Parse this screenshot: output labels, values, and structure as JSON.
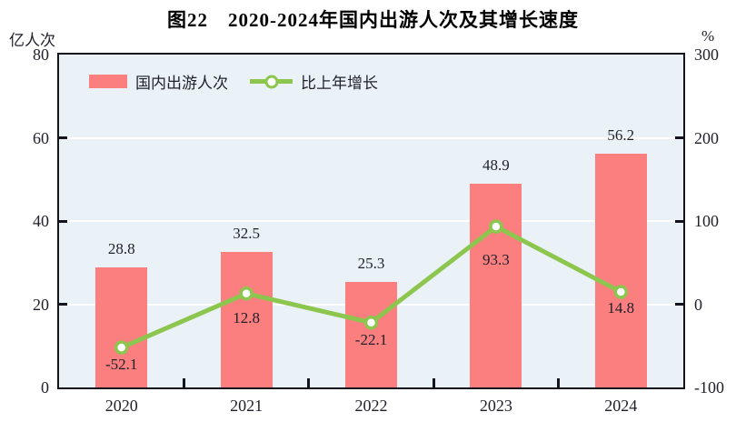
{
  "chart_data": {
    "type": "bar+line",
    "title": "图22　2020-2024年国内出游人次及其增长速度",
    "categories": [
      "2020",
      "2021",
      "2022",
      "2023",
      "2024"
    ],
    "series": [
      {
        "name": "国内出游人次",
        "type": "bar",
        "axis": "left",
        "values": [
          28.8,
          32.5,
          25.3,
          48.9,
          56.2
        ],
        "color": "#fb7f7f"
      },
      {
        "name": "比上年增长",
        "type": "line",
        "axis": "right",
        "values": [
          -52.1,
          12.8,
          -22.1,
          93.3,
          14.8
        ],
        "color": "#8cc64e",
        "marker": "open-circle"
      }
    ],
    "left_axis": {
      "label": "亿人次",
      "min": 0,
      "max": 80,
      "ticks": [
        0,
        20,
        40,
        60,
        80
      ]
    },
    "right_axis": {
      "label": "%",
      "min": -100,
      "max": 300,
      "ticks": [
        -100,
        0,
        100,
        200,
        300
      ]
    },
    "grid": true,
    "grid_color": "#ffffff",
    "plot_bg": "#ebf2f7",
    "frame_color": "#14141c",
    "text_color": "#21212b",
    "legend_position": "top-left-inside"
  }
}
